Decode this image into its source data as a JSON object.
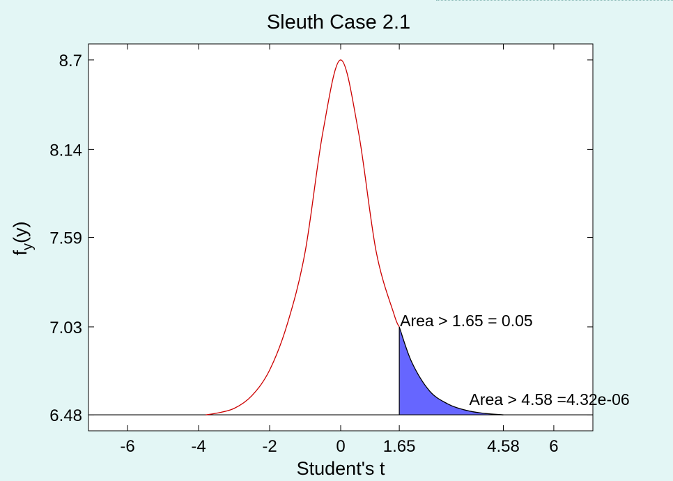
{
  "chart_data": {
    "type": "line",
    "title": "Sleuth Case 2.1",
    "xlabel": "Student's t",
    "ylabel": {
      "base": "f",
      "subscript": "y",
      "suffix": "(y)"
    },
    "xlim": [
      -7.1,
      7.1
    ],
    "ylim": [
      6.38,
      8.8
    ],
    "x_ticks": [
      {
        "value": -6,
        "label": "-6"
      },
      {
        "value": -4,
        "label": "-4"
      },
      {
        "value": -2,
        "label": "-2"
      },
      {
        "value": 0,
        "label": "0"
      },
      {
        "value": 1.65,
        "label": "1.65"
      },
      {
        "value": 4.58,
        "label": "4.58"
      },
      {
        "value": 6,
        "label": "6"
      }
    ],
    "y_ticks": [
      {
        "value": 6.48,
        "label": "6.48"
      },
      {
        "value": 7.03,
        "label": "7.03"
      },
      {
        "value": 7.59,
        "label": "7.59"
      },
      {
        "value": 8.14,
        "label": "8.14"
      },
      {
        "value": 8.7,
        "label": "8.7"
      }
    ],
    "series": [
      {
        "color": "#cc0000",
        "x": [
          -3.8,
          -3.5,
          -3.0,
          -2.5,
          -2.0,
          -1.5,
          -1.0,
          -0.5,
          0.0,
          0.5,
          1.0,
          1.5,
          1.65
        ],
        "y": [
          6.48,
          6.49,
          6.52,
          6.6,
          6.76,
          7.05,
          7.5,
          8.25,
          8.7,
          8.25,
          7.5,
          7.11,
          7.03
        ]
      },
      {
        "color": "#000000",
        "x": [
          1.65,
          2.0,
          2.5,
          3.0,
          3.5,
          4.0,
          4.58
        ],
        "y": [
          7.03,
          6.81,
          6.63,
          6.55,
          6.51,
          6.49,
          6.48
        ]
      }
    ],
    "baseline": {
      "y": 6.48,
      "color": "#000000"
    },
    "shaded_region": {
      "x_from": 1.65,
      "x_to": 4.58,
      "color": "#6666ff"
    },
    "annotations": [
      {
        "text": "Area > 1.65 =  0.05",
        "x": 1.65,
        "y": 7.03
      },
      {
        "text": "Area > 4.58 =4.32e-06",
        "x": 4.58,
        "y": 6.48
      }
    ]
  }
}
